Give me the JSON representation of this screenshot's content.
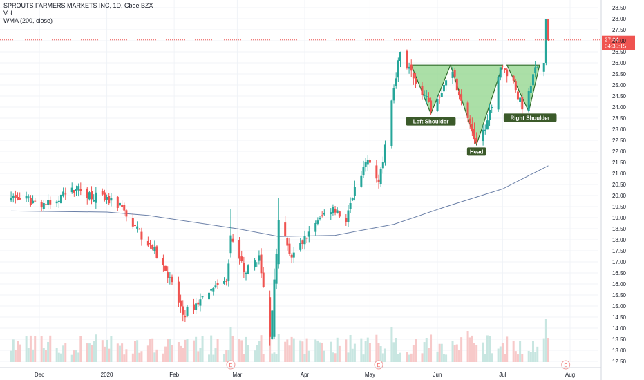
{
  "header": {
    "title": "SPROUTS FARMERS MARKETS INC, 1D, Cboe BZX",
    "vol_label": "Vol",
    "wma_label": "WMA (200, close)"
  },
  "price_axis": {
    "ticks": [
      "28.50",
      "28.00",
      "27.50",
      "27.00",
      "26.50",
      "26.00",
      "25.50",
      "25.00",
      "24.50",
      "24.00",
      "23.50",
      "23.00",
      "22.50",
      "22.00",
      "21.50",
      "21.00",
      "20.50",
      "20.00",
      "19.50",
      "19.00",
      "18.50",
      "18.00",
      "17.50",
      "17.00",
      "16.50",
      "16.00",
      "15.50",
      "15.00",
      "14.50",
      "14.00",
      "13.50",
      "13.00",
      "12.50"
    ],
    "last_price": "27.04",
    "countdown": "04:35:15"
  },
  "time_axis": {
    "labels": [
      "Dec",
      "2020",
      "Feb",
      "Mar",
      "Apr",
      "May",
      "Jun",
      "Jul",
      "Aug"
    ]
  },
  "pattern": {
    "left_shoulder": "Left Shoulder",
    "head": "Head",
    "right_shoulder": "Right Shoulder"
  },
  "earnings_marker": "E",
  "colors": {
    "up": "#26a69a",
    "down": "#ef5350",
    "wma": "#6b80a8",
    "pattern_fill": "#8fd48a",
    "label_bg": "#3b5a2a",
    "price_line": "#ef5350"
  },
  "chart_data": {
    "type": "candlestick",
    "title": "SPROUTS FARMERS MARKETS INC, 1D, Cboe BZX",
    "x_range": [
      "2019-11-18",
      "2020-08-07"
    ],
    "ylim": [
      12.3,
      28.75
    ],
    "grid": true,
    "indicators": [
      "Vol",
      "WMA (200, close)"
    ],
    "last_close": 27.04,
    "ohlc_keyframes": [
      {
        "date": "2019-11-18",
        "close": 19.9
      },
      {
        "date": "2019-12-06",
        "close": 19.6
      },
      {
        "date": "2019-12-18",
        "close": 20.3
      },
      {
        "date": "2019-12-31",
        "close": 19.8
      },
      {
        "date": "2020-01-08",
        "close": 19.5
      },
      {
        "date": "2020-01-13",
        "close": 18.6
      },
      {
        "date": "2020-01-21",
        "close": 17.8
      },
      {
        "date": "2020-01-30",
        "close": 16.3
      },
      {
        "date": "2020-02-05",
        "close": 14.6
      },
      {
        "date": "2020-02-17",
        "close": 15.6
      },
      {
        "date": "2020-02-25",
        "close": 16.1
      },
      {
        "date": "2020-02-27",
        "close": 18.0
      },
      {
        "date": "2020-03-05",
        "close": 16.5
      },
      {
        "date": "2020-03-11",
        "close": 17.3
      },
      {
        "date": "2020-03-16",
        "close": 13.5
      },
      {
        "date": "2020-03-20",
        "close": 18.9
      },
      {
        "date": "2020-03-26",
        "close": 17.2
      },
      {
        "date": "2020-04-08",
        "close": 19.0
      },
      {
        "date": "2020-04-14",
        "close": 19.5
      },
      {
        "date": "2020-04-20",
        "close": 18.8
      },
      {
        "date": "2020-04-24",
        "close": 20.4
      },
      {
        "date": "2020-04-30",
        "close": 21.6
      },
      {
        "date": "2020-05-05",
        "close": 20.6
      },
      {
        "date": "2020-05-08",
        "close": 22.3
      },
      {
        "date": "2020-05-11",
        "close": 24.3
      },
      {
        "date": "2020-05-13",
        "close": 25.3
      },
      {
        "date": "2020-05-15",
        "close": 26.5
      },
      {
        "date": "2020-05-21",
        "close": 25.3
      },
      {
        "date": "2020-05-27",
        "close": 24.5
      },
      {
        "date": "2020-05-29",
        "close": 23.8
      },
      {
        "date": "2020-06-04",
        "close": 25.0
      },
      {
        "date": "2020-06-08",
        "close": 25.6
      },
      {
        "date": "2020-06-15",
        "close": 23.5
      },
      {
        "date": "2020-06-19",
        "close": 22.4
      },
      {
        "date": "2020-06-24",
        "close": 23.4
      },
      {
        "date": "2020-06-30",
        "close": 25.8
      },
      {
        "date": "2020-07-06",
        "close": 25.2
      },
      {
        "date": "2020-07-10",
        "close": 23.9
      },
      {
        "date": "2020-07-16",
        "close": 25.8
      },
      {
        "date": "2020-07-20",
        "close": 26.0
      },
      {
        "date": "2020-07-21",
        "close": 28.0
      },
      {
        "date": "2020-07-22",
        "close": 27.04
      }
    ],
    "wma_keyframes": [
      {
        "date": "2019-11-18",
        "value": 19.3
      },
      {
        "date": "2020-01-01",
        "value": 19.25
      },
      {
        "date": "2020-01-20",
        "value": 19.1
      },
      {
        "date": "2020-03-01",
        "value": 18.5
      },
      {
        "date": "2020-03-20",
        "value": 18.15
      },
      {
        "date": "2020-04-15",
        "value": 18.2
      },
      {
        "date": "2020-05-12",
        "value": 18.7
      },
      {
        "date": "2020-06-05",
        "value": 19.5
      },
      {
        "date": "2020-07-01",
        "value": 20.3
      },
      {
        "date": "2020-07-22",
        "value": 21.35
      }
    ],
    "pattern": {
      "name": "Inverse Head and Shoulders",
      "neckline": 25.9,
      "left_shoulder": {
        "date": "2020-05-29",
        "value": 23.7
      },
      "head": {
        "date": "2020-06-19",
        "value": 22.3
      },
      "right_shoulder": {
        "date": "2020-07-13",
        "value": 23.8
      }
    },
    "earnings_dates": [
      "2020-02-27",
      "2020-05-05",
      "2020-07-30"
    ]
  }
}
